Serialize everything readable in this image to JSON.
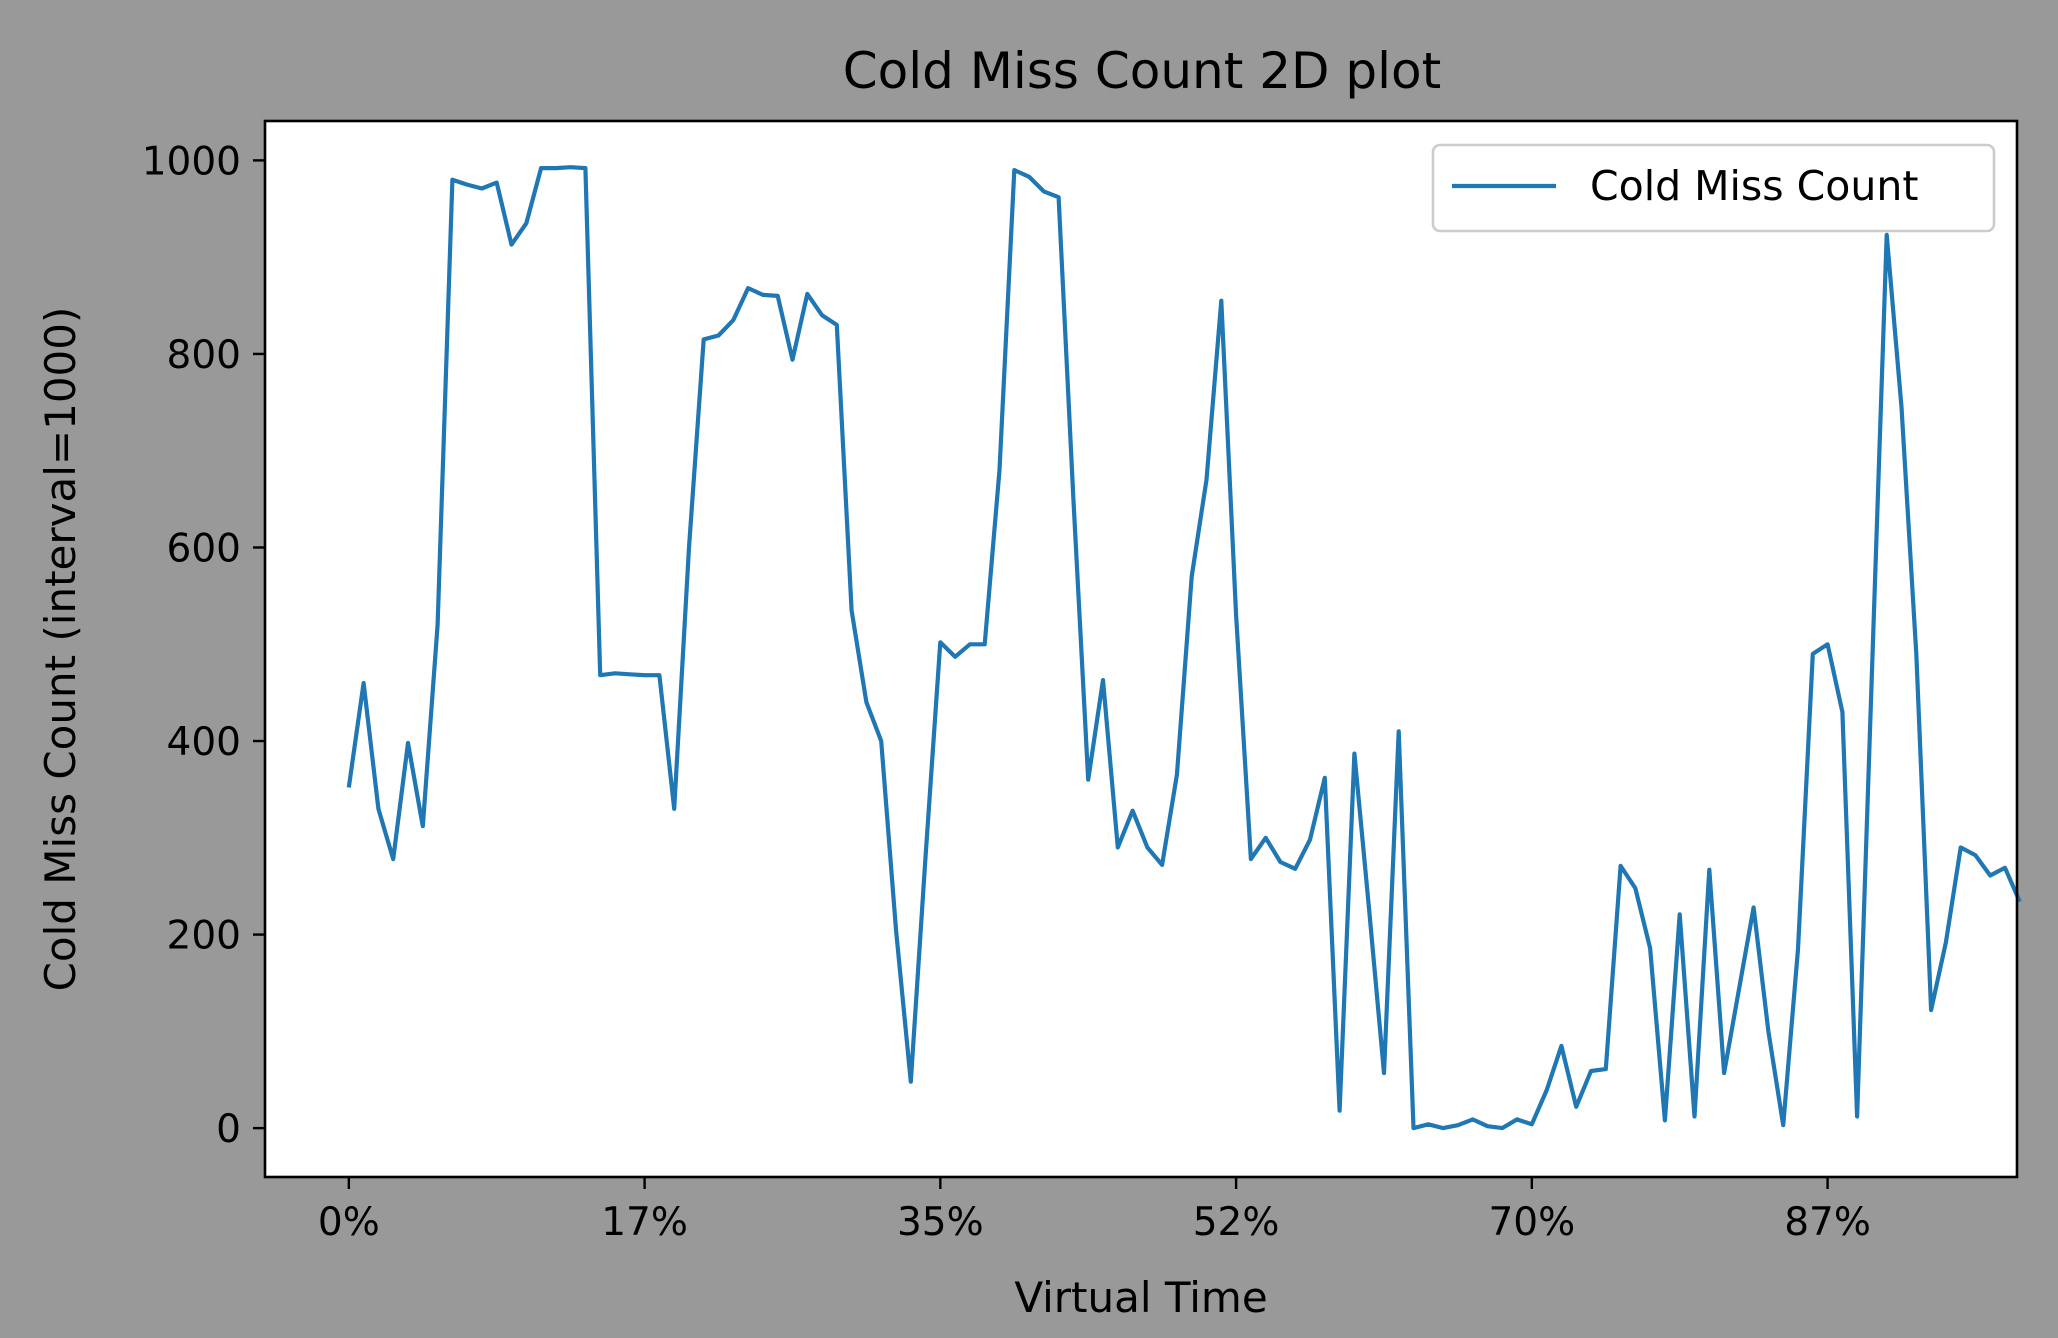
{
  "figure": {
    "background": "#999999",
    "plot_background": "#ffffff"
  },
  "chart_data": {
    "type": "line",
    "title": "Cold Miss Count 2D plot",
    "xlabel": "Virtual Time",
    "ylabel": "Cold Miss Count (interval=1000)",
    "xlim": [
      -5.67,
      112.81
    ],
    "ylim": [
      -50.5,
      1040.7
    ],
    "grid": false,
    "legend_placement": "top-right",
    "x_ticks": [
      0,
      20,
      40,
      60,
      80,
      100
    ],
    "x_tick_labels": [
      "0%",
      "17%",
      "35%",
      "52%",
      "70%",
      "87%"
    ],
    "y_ticks": [
      0,
      200,
      400,
      600,
      800,
      1000
    ],
    "y_tick_labels": [
      "0",
      "200",
      "400",
      "600",
      "800",
      "1000"
    ],
    "series": [
      {
        "name": "Cold Miss Count",
        "color": "#1f77b4",
        "x": [
          0,
          1,
          2,
          3,
          4,
          5,
          6,
          7,
          8,
          9,
          10,
          11,
          12,
          13,
          14,
          15,
          16,
          17,
          18,
          19,
          20,
          21,
          22,
          23,
          24,
          25,
          26,
          27,
          28,
          29,
          30,
          31,
          32,
          33,
          34,
          35,
          36,
          37,
          38,
          39,
          40,
          41,
          42,
          43,
          44,
          45,
          46,
          47,
          48,
          49,
          50,
          51,
          52,
          53,
          54,
          55,
          56,
          57,
          58,
          59,
          60,
          61,
          62,
          63,
          64,
          65,
          66,
          67,
          68,
          69,
          70,
          71,
          72,
          73,
          74,
          75,
          76,
          77,
          78,
          79,
          80,
          81,
          82,
          83,
          84,
          85,
          86,
          87,
          88,
          89,
          90,
          91,
          92,
          93,
          94,
          95,
          96,
          97,
          98,
          99,
          100,
          101,
          102,
          103,
          104,
          105,
          106,
          107,
          108,
          109,
          110,
          111,
          112,
          113
        ],
        "y": [
          352,
          460,
          330,
          278,
          398,
          312,
          520,
          980,
          975,
          971,
          977,
          913,
          935,
          992,
          992,
          993,
          992,
          468,
          470,
          469,
          468,
          468,
          330,
          600,
          815,
          819,
          835,
          868,
          861,
          860,
          794,
          862,
          840,
          830,
          535,
          440,
          400,
          205,
          48,
          280,
          502,
          487,
          500,
          500,
          680,
          990,
          983,
          968,
          962,
          650,
          360,
          463,
          290,
          328,
          290,
          272,
          365,
          570,
          670,
          855,
          530,
          278,
          300,
          275,
          268,
          298,
          362,
          18,
          387,
          225,
          57,
          410,
          0,
          4,
          0,
          3,
          9,
          2,
          0,
          9,
          4,
          39,
          85,
          22,
          59,
          61,
          271,
          248,
          186,
          8,
          221,
          12,
          267,
          57,
          143,
          228,
          100,
          3,
          185,
          490,
          500,
          430,
          12,
          470,
          923,
          745,
          490,
          122,
          192,
          290,
          282,
          261,
          269,
          234
        ]
      }
    ]
  }
}
